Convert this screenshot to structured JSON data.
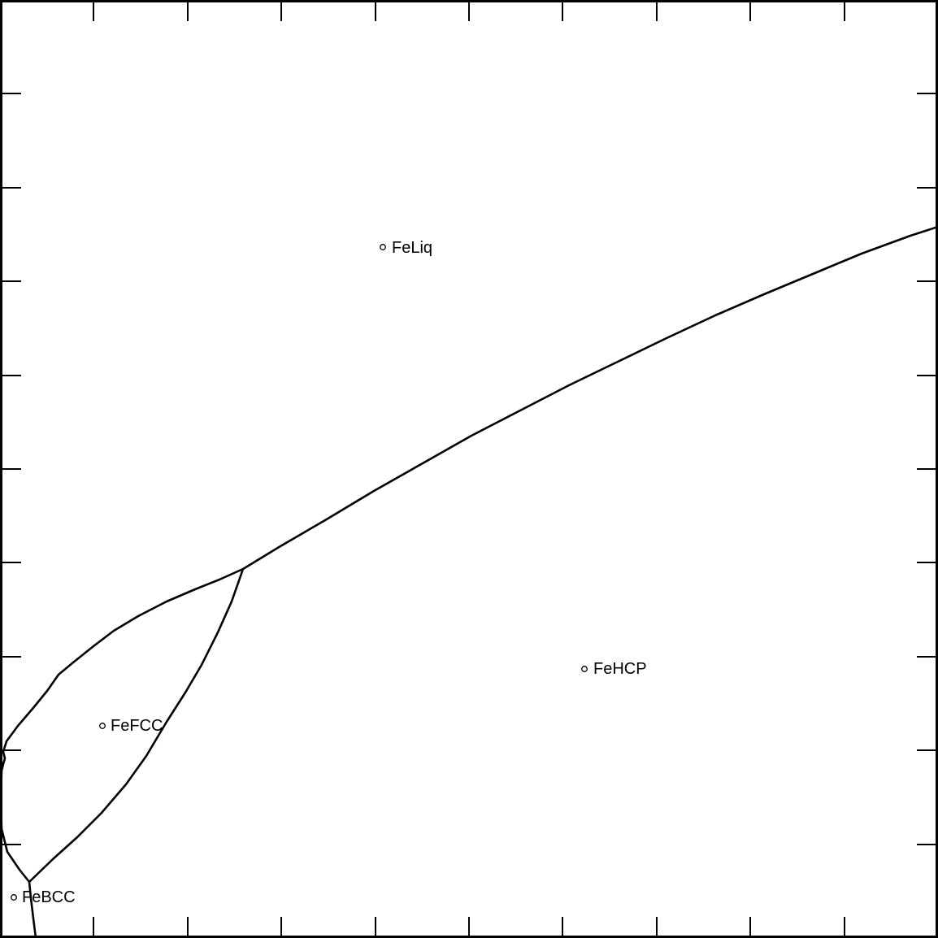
{
  "diagram": {
    "type": "phase-diagram",
    "ticks_per_side": 9,
    "colors": {
      "line": "#000000",
      "background": "#ffffff"
    },
    "phases": [
      {
        "id": "liq",
        "label": "FeLiq"
      },
      {
        "id": "hcp",
        "label": "FeHCP"
      },
      {
        "id": "fcc",
        "label": "FeFCC"
      },
      {
        "id": "bcc",
        "label": "FeBCC"
      }
    ]
  }
}
